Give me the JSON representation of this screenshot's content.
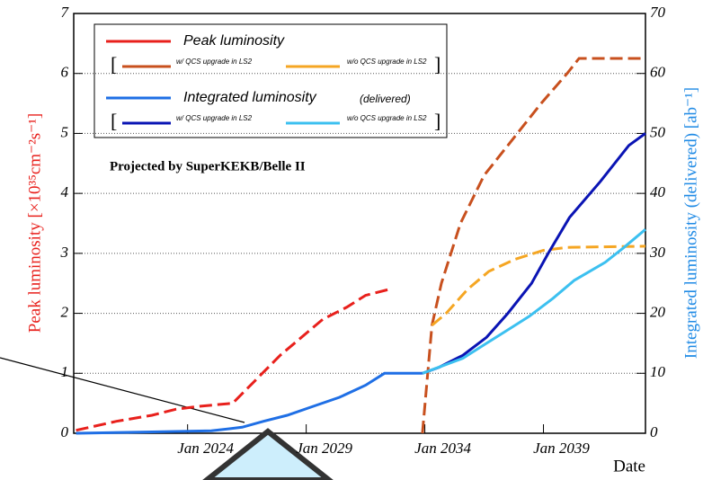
{
  "chart_data": {
    "type": "line",
    "annotation": "Projected by SuperKEKB/Belle II",
    "ylabel": "Peak luminosity [×10³⁵cm⁻²s⁻¹]",
    "y2label": "Integrated luminosity (delivered) [ab⁻¹]",
    "xlabel": "Date",
    "xlim": [
      2019.2,
      2043.3
    ],
    "xticks": [
      {
        "value": 2024,
        "label": "Jan 2024"
      },
      {
        "value": 2029,
        "label": "Jan 2029"
      },
      {
        "value": 2034,
        "label": "Jan 2034"
      },
      {
        "value": 2039,
        "label": "Jan 2039"
      }
    ],
    "ylim": [
      0,
      7
    ],
    "yticks": [
      0,
      1,
      2,
      3,
      4,
      5,
      6,
      7
    ],
    "y2lim": [
      0,
      70
    ],
    "y2ticks": [
      0,
      10,
      20,
      30,
      40,
      50,
      60,
      70
    ],
    "grid": true,
    "series": [
      {
        "name": "Peak luminosity",
        "color": "#e8201c",
        "dashed": true,
        "axis": "y",
        "x": [
          2019.3,
          2021,
          2022.5,
          2023.5,
          2024.5,
          2025.9,
          2026.9,
          2027.9,
          2028.8,
          2029.7,
          2030.7,
          2031.5,
          2032.5
        ],
        "values": [
          0.05,
          0.2,
          0.3,
          0.4,
          0.45,
          0.5,
          0.9,
          1.3,
          1.6,
          1.9,
          2.1,
          2.3,
          2.4
        ]
      },
      {
        "name": "w/ QCS upgrade in LS2",
        "color": "#c8501e",
        "dashed": true,
        "axis": "y",
        "x": [
          2033.9,
          2034.3,
          2034.7,
          2035.5,
          2036.5,
          2037.9,
          2038.9,
          2040.0,
          2040.5,
          2043.3
        ],
        "values": [
          0,
          1.8,
          2.5,
          3.5,
          4.3,
          5,
          5.5,
          6,
          6.25,
          6.25
        ]
      },
      {
        "name": "w/o QCS upgrade in LS2",
        "color": "#f5a623",
        "dashed": true,
        "axis": "y",
        "x": [
          2034.3,
          2034.9,
          2035.8,
          2036.7,
          2037.8,
          2039,
          2040,
          2043.3
        ],
        "values": [
          1.8,
          2.0,
          2.4,
          2.7,
          2.9,
          3.05,
          3.1,
          3.12
        ]
      },
      {
        "name": "Integrated luminosity",
        "note": "(delivered)",
        "color": "#1f6fe5",
        "dashed": false,
        "axis": "y2",
        "x": [
          2019.3,
          2022,
          2025,
          2026.3,
          2027.2,
          2028.2,
          2029.3,
          2030.4,
          2031.5,
          2032.3,
          2033.9
        ],
        "values": [
          0,
          0.2,
          0.4,
          1,
          2,
          3,
          4.5,
          6,
          8,
          10,
          10
        ]
      },
      {
        "name": "w/ QCS upgrade in LS2",
        "color": "#0a14b4",
        "dashed": false,
        "axis": "y2",
        "x": [
          2033.9,
          2034.6,
          2035.6,
          2036.6,
          2037.5,
          2038.5,
          2039.2,
          2040.1,
          2041.4,
          2042.6,
          2043.3
        ],
        "values": [
          10,
          11,
          13,
          16,
          20,
          25,
          30,
          36,
          42,
          48,
          50
        ]
      },
      {
        "name": "w/o QCS upgrade in LS2",
        "color": "#3cc0f0",
        "dashed": false,
        "axis": "y2",
        "x": [
          2033.9,
          2035.6,
          2036.6,
          2037.4,
          2038.4,
          2039.4,
          2040.3,
          2041.6,
          2042.4,
          2043.3
        ],
        "values": [
          10,
          12.5,
          15,
          17,
          19.5,
          22.5,
          25.5,
          28.5,
          31,
          34
        ]
      }
    ]
  }
}
